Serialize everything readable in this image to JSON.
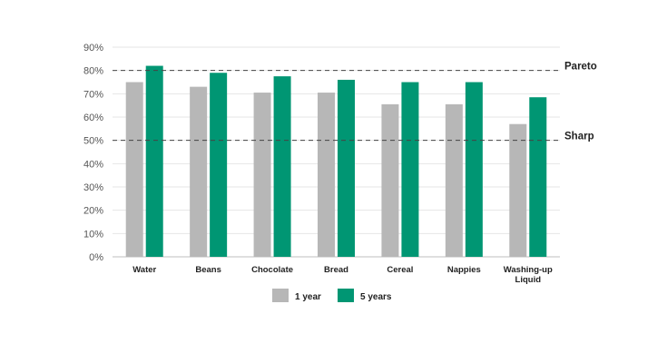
{
  "chart_data": {
    "type": "bar",
    "categories": [
      "Water",
      "Beans",
      "Chocolate",
      "Bread",
      "Cereal",
      "Nappies",
      "Washing-up Liquid"
    ],
    "series": [
      {
        "name": "1 year",
        "color": "#b7b7b7",
        "values": [
          75,
          73,
          70.5,
          70.5,
          65.5,
          65.5,
          57
        ]
      },
      {
        "name": "5 years",
        "color": "#009673",
        "values": [
          82,
          79,
          77.5,
          76,
          75,
          75,
          68.5
        ]
      }
    ],
    "ylim": [
      0,
      90
    ],
    "yticks": [
      "0%",
      "10%",
      "20%",
      "30%",
      "40%",
      "50%",
      "60%",
      "70%",
      "80%",
      "90%"
    ],
    "reference_lines": [
      {
        "label": "Pareto",
        "value": 80
      },
      {
        "label": "Sharp",
        "value": 50
      }
    ],
    "grid": true,
    "legend_position": "bottom-center"
  }
}
